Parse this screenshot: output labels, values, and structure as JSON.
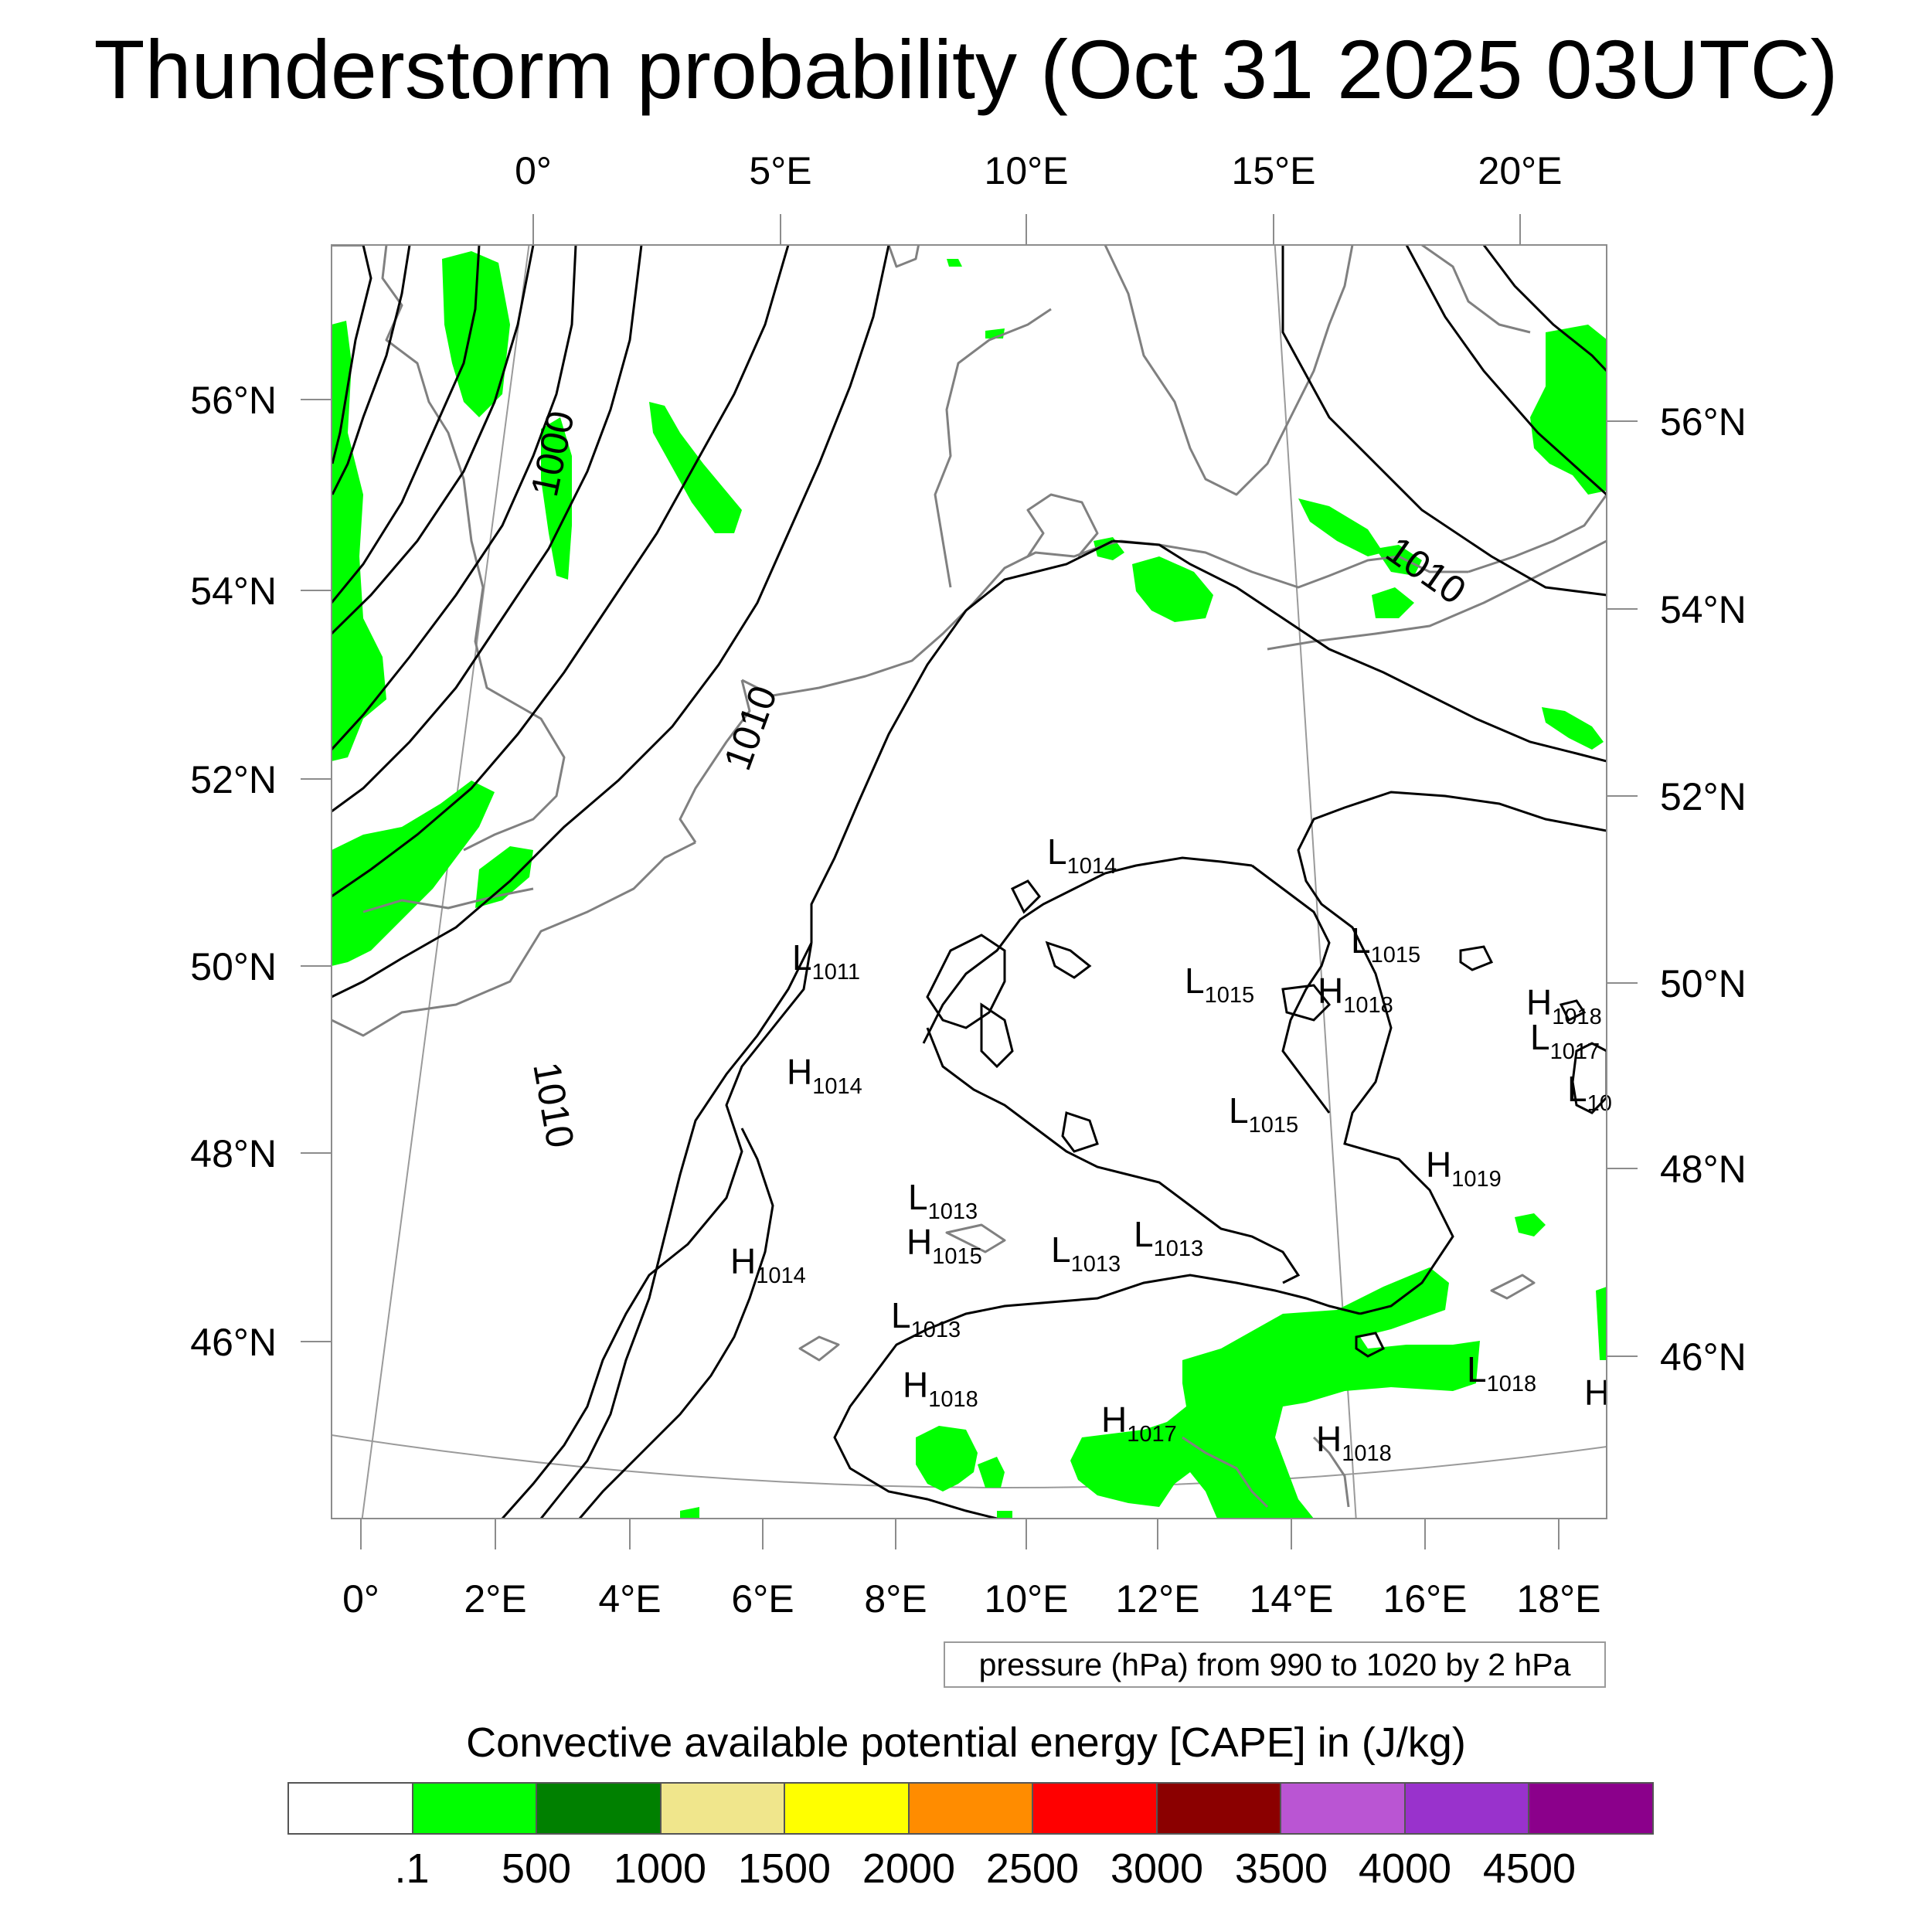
{
  "title": "Thunderstorm probability (Oct 31 2025 03UTC)",
  "map": {
    "top_lon_labels": [
      "0°",
      "5°E",
      "10°E",
      "15°E",
      "20°E"
    ],
    "bottom_lon_labels": [
      "0°",
      "2°E",
      "4°E",
      "6°E",
      "8°E",
      "10°E",
      "12°E",
      "14°E",
      "16°E",
      "18°E"
    ],
    "left_lat_labels": [
      "56°N",
      "54°N",
      "52°N",
      "50°N",
      "48°N",
      "46°N"
    ],
    "right_lat_labels": [
      "56°N",
      "54°N",
      "52°N",
      "50°N",
      "48°N",
      "46°N"
    ],
    "isobar_labels": [
      "1000",
      "1010",
      "1010",
      "1010"
    ],
    "pressure_centers": [
      {
        "type": "L",
        "value": "1014"
      },
      {
        "type": "L",
        "value": "1011"
      },
      {
        "type": "H",
        "value": "1014"
      },
      {
        "type": "H",
        "value": "1014"
      },
      {
        "type": "L",
        "value": "1013"
      },
      {
        "type": "H",
        "value": "1015"
      },
      {
        "type": "L",
        "value": "1013"
      },
      {
        "type": "L",
        "value": "1013"
      },
      {
        "type": "L",
        "value": "1013"
      },
      {
        "type": "H",
        "value": "1018"
      },
      {
        "type": "H",
        "value": "1017"
      },
      {
        "type": "L",
        "value": "1015"
      },
      {
        "type": "L",
        "value": "1015"
      },
      {
        "type": "H",
        "value": "1018"
      },
      {
        "type": "L",
        "value": "1015"
      },
      {
        "type": "H",
        "value": "1018"
      },
      {
        "type": "L",
        "value": "1017"
      },
      {
        "type": "L",
        "value": "10"
      },
      {
        "type": "H",
        "value": "1019"
      },
      {
        "type": "L",
        "value": "1018"
      },
      {
        "type": "H",
        "value": "1018"
      },
      {
        "type": "H",
        "value": ""
      }
    ],
    "colors": {
      "coast": "#808080",
      "isobar": "#000000",
      "cape_low": "#00ff00"
    }
  },
  "pressure_note": "pressure (hPa) from 990 to 1020 by 2 hPa",
  "legend": {
    "title": "Convective available potential energy [CAPE] in (J/kg)",
    "colors": [
      "#ffffff",
      "#00ff00",
      "#008000",
      "#f0e68c",
      "#ffff00",
      "#ff8c00",
      "#ff0000",
      "#8b0000",
      "#ba55d3",
      "#9932cc",
      "#8b008b"
    ],
    "labels": [
      ".1",
      "500",
      "1000",
      "1500",
      "2000",
      "2500",
      "3000",
      "3500",
      "4000",
      "4500"
    ]
  }
}
